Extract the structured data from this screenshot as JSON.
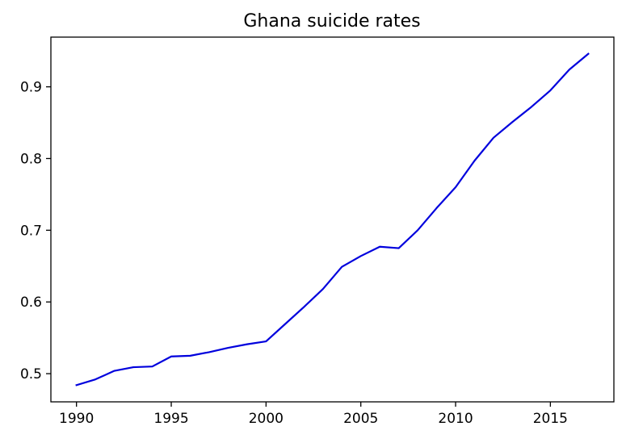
{
  "chart_data": {
    "type": "line",
    "title": "Ghana suicide rates",
    "xlabel": "",
    "ylabel": "",
    "xlim": [
      1988.65,
      2018.35
    ],
    "ylim": [
      0.4607,
      0.9693
    ],
    "x_ticks": [
      1990,
      1995,
      2000,
      2005,
      2010,
      2015
    ],
    "x_tick_labels": [
      "1990",
      "1995",
      "2000",
      "2005",
      "2010",
      "2015"
    ],
    "y_ticks": [
      0.5,
      0.6,
      0.7,
      0.8,
      0.9
    ],
    "y_tick_labels": [
      "0.5",
      "0.6",
      "0.7",
      "0.8",
      "0.9"
    ],
    "grid": false,
    "legend": "none",
    "series": [
      {
        "color": "#0000dd",
        "x": [
          1990,
          1991,
          1992,
          1993,
          1994,
          1995,
          1996,
          1997,
          1998,
          1999,
          2000,
          2001,
          2002,
          2003,
          2004,
          2005,
          2006,
          2007,
          2008,
          2009,
          2010,
          2011,
          2012,
          2013,
          2014,
          2015,
          2016,
          2017
        ],
        "y": [
          0.484,
          0.492,
          0.504,
          0.509,
          0.51,
          0.524,
          0.525,
          0.53,
          0.536,
          0.541,
          0.545,
          0.569,
          0.593,
          0.618,
          0.649,
          0.664,
          0.677,
          0.675,
          0.7,
          0.731,
          0.76,
          0.797,
          0.829,
          0.851,
          0.872,
          0.895,
          0.924,
          0.946
        ]
      }
    ]
  }
}
